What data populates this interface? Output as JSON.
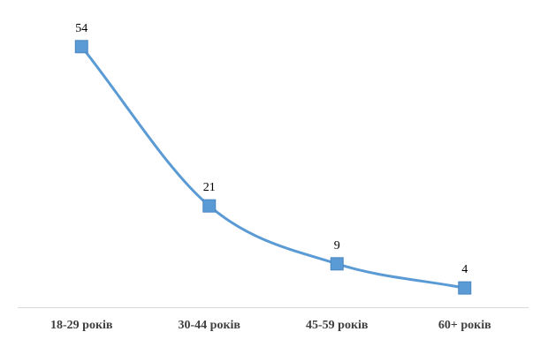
{
  "chart_data": {
    "type": "line",
    "categories": [
      "18-29 років",
      "30-44 років",
      "45-59 років",
      "60+ років"
    ],
    "series": [
      {
        "values": [
          54,
          21,
          9,
          4
        ]
      }
    ],
    "data_labels": [
      "54",
      "21",
      "9",
      "4"
    ],
    "title": "",
    "xlabel": "",
    "ylabel": "",
    "ylim": [
      0,
      60
    ],
    "grid": false,
    "legend": "none",
    "smooth": true,
    "marker": "square",
    "colors": {
      "line": "#5B9BD5",
      "marker": "#5B9BD5",
      "axis": "#D9D9D9"
    }
  }
}
